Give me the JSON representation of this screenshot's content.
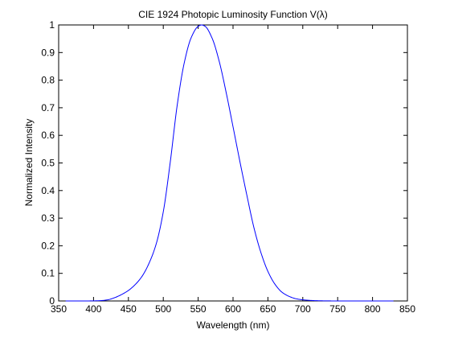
{
  "chart_data": {
    "type": "line",
    "title": "CIE 1924 Photopic Luminosity Function V(λ)",
    "xlabel": "Wavelength (nm)",
    "ylabel": "Normalized Intensity",
    "xlim": [
      350,
      850
    ],
    "ylim": [
      0,
      1
    ],
    "xticks": [
      350,
      400,
      450,
      500,
      550,
      600,
      650,
      700,
      750,
      800,
      850
    ],
    "xtick_labels": [
      "350",
      "400",
      "450",
      "500",
      "550",
      "600",
      "650",
      "700",
      "750",
      "800",
      "850"
    ],
    "yticks": [
      0,
      0.1,
      0.2,
      0.3,
      0.4,
      0.5,
      0.6,
      0.7,
      0.8,
      0.9,
      1
    ],
    "ytick_labels": [
      "0",
      "0.1",
      "0.2",
      "0.3",
      "0.4",
      "0.5",
      "0.6",
      "0.7",
      "0.8",
      "0.9",
      "1"
    ],
    "grid": false,
    "line_color": "#0000ff",
    "series": [
      {
        "x": [
          360,
          370,
          380,
          390,
          400,
          410,
          420,
          430,
          440,
          450,
          460,
          470,
          480,
          490,
          500,
          510,
          520,
          530,
          540,
          550,
          555,
          560,
          570,
          580,
          590,
          600,
          610,
          620,
          630,
          640,
          650,
          660,
          670,
          680,
          690,
          700,
          710,
          720,
          730,
          740,
          750,
          760,
          770,
          780,
          790,
          800,
          810,
          820,
          830
        ],
        "values": [
          0.0,
          0.0,
          0.0,
          0.0001,
          0.0004,
          0.0012,
          0.004,
          0.0116,
          0.023,
          0.038,
          0.06,
          0.091,
          0.139,
          0.208,
          0.323,
          0.503,
          0.71,
          0.862,
          0.954,
          0.995,
          1.0,
          0.995,
          0.952,
          0.87,
          0.757,
          0.631,
          0.503,
          0.381,
          0.265,
          0.175,
          0.107,
          0.061,
          0.032,
          0.017,
          0.0082,
          0.0041,
          0.0021,
          0.001,
          0.0005,
          0.0002,
          0.0001,
          0.0,
          0.0,
          0.0,
          0.0,
          0.0,
          0.0,
          0.0,
          0.0
        ]
      }
    ]
  }
}
